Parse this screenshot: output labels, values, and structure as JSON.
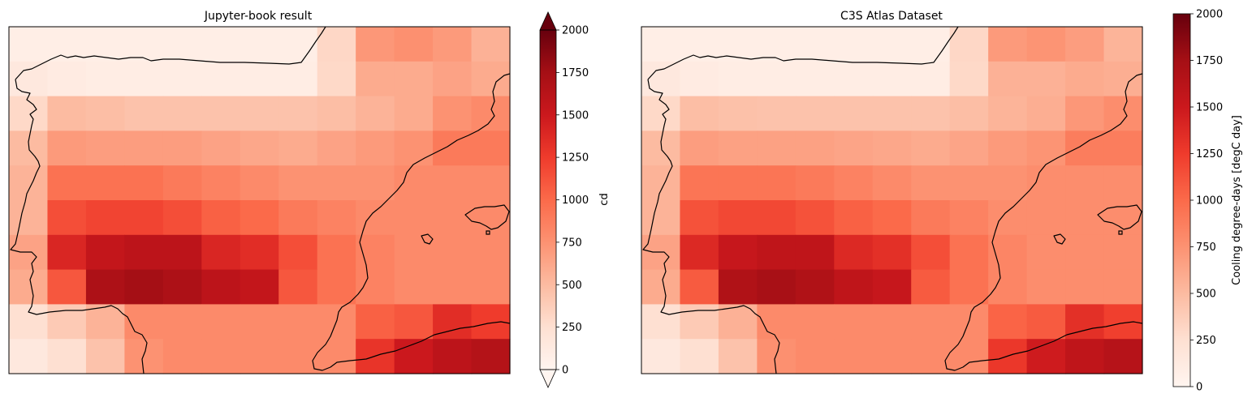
{
  "chart_data": [
    {
      "type": "heatmap",
      "title": "Jupyter-book result",
      "colorbar": {
        "label": "cd",
        "ticks": [
          0,
          250,
          500,
          750,
          1000,
          1250,
          1500,
          1750,
          2000
        ],
        "tick_labels": [
          "0",
          "250",
          "500",
          "750",
          "1000",
          "1250",
          "1500",
          "1750",
          "2000"
        ],
        "extend": "both",
        "vmin": 0,
        "vmax": 2000,
        "cmap": "Reds"
      },
      "grid_columns": 13,
      "grid_rows": 10,
      "values": [
        [
          80,
          80,
          80,
          80,
          80,
          80,
          80,
          80,
          310,
          720,
          760,
          700,
          560
        ],
        [
          150,
          120,
          100,
          100,
          100,
          100,
          100,
          100,
          300,
          600,
          600,
          650,
          600
        ],
        [
          300,
          500,
          480,
          450,
          450,
          450,
          450,
          450,
          480,
          550,
          600,
          750,
          800
        ],
        [
          500,
          700,
          680,
          680,
          680,
          650,
          620,
          600,
          650,
          700,
          750,
          900,
          900
        ],
        [
          550,
          950,
          950,
          950,
          900,
          850,
          800,
          750,
          750,
          750,
          800,
          800,
          800
        ],
        [
          550,
          1150,
          1200,
          1200,
          1150,
          1050,
          1000,
          900,
          850,
          800,
          800,
          800,
          800
        ],
        [
          650,
          1400,
          1550,
          1600,
          1600,
          1400,
          1350,
          1150,
          950,
          850,
          800,
          800,
          800
        ],
        [
          600,
          1100,
          1700,
          1750,
          1700,
          1600,
          1550,
          1100,
          950,
          850,
          800,
          800,
          800
        ],
        [
          250,
          400,
          550,
          800,
          800,
          800,
          800,
          800,
          800,
          1050,
          1100,
          1350,
          1250
        ],
        [
          150,
          250,
          450,
          750,
          800,
          800,
          800,
          800,
          800,
          1300,
          1500,
          1600,
          1650
        ]
      ]
    },
    {
      "type": "heatmap",
      "title": "C3S Atlas Dataset",
      "colorbar": {
        "label": "Cooling degree-days [degC day]",
        "ticks": [
          0,
          250,
          500,
          750,
          1000,
          1250,
          1500,
          1750,
          2000
        ],
        "tick_labels": [
          "0",
          "250",
          "500",
          "750",
          "1000",
          "1250",
          "1500",
          "1750",
          "2000"
        ],
        "extend": "neither",
        "vmin": 0,
        "vmax": 2000,
        "cmap": "Reds"
      },
      "grid_columns": 13,
      "grid_rows": 10,
      "values": [
        [
          80,
          80,
          80,
          80,
          80,
          80,
          80,
          80,
          310,
          700,
          740,
          680,
          540
        ],
        [
          150,
          120,
          100,
          100,
          100,
          100,
          100,
          100,
          300,
          560,
          560,
          600,
          580
        ],
        [
          300,
          480,
          460,
          450,
          450,
          450,
          450,
          450,
          480,
          540,
          580,
          720,
          780
        ],
        [
          500,
          680,
          660,
          660,
          660,
          640,
          620,
          600,
          640,
          700,
          740,
          880,
          880
        ],
        [
          550,
          930,
          930,
          930,
          900,
          850,
          800,
          750,
          750,
          750,
          780,
          780,
          780
        ],
        [
          550,
          1130,
          1180,
          1180,
          1130,
          1050,
          1000,
          900,
          850,
          780,
          780,
          780,
          780
        ],
        [
          650,
          1380,
          1530,
          1580,
          1580,
          1380,
          1330,
          1150,
          950,
          830,
          780,
          780,
          780
        ],
        [
          600,
          1080,
          1680,
          1730,
          1680,
          1580,
          1530,
          1080,
          950,
          830,
          780,
          780,
          780
        ],
        [
          250,
          400,
          560,
          800,
          800,
          800,
          800,
          800,
          800,
          1030,
          1080,
          1330,
          1230
        ],
        [
          150,
          250,
          450,
          760,
          800,
          800,
          800,
          800,
          800,
          1280,
          1480,
          1580,
          1640
        ]
      ]
    }
  ],
  "colors": {
    "coastline": "#000000",
    "axes_frame": "#000000",
    "cmap_stops": [
      "#fff5f0",
      "#fee0d2",
      "#fcbba1",
      "#fc9272",
      "#fb6a4a",
      "#ef3b2c",
      "#cb181d",
      "#a50f15",
      "#67000d"
    ]
  }
}
